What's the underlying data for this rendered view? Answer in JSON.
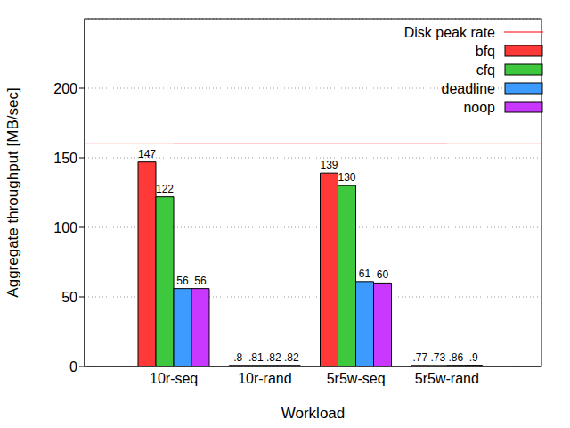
{
  "chart_data": {
    "type": "bar",
    "x_label": "Workload",
    "y_label": "Aggregate throughput [MB/sec]",
    "categories": [
      "10r-seq",
      "10r-rand",
      "5r5w-seq",
      "5r5w-rand"
    ],
    "series": [
      {
        "name": "Disk peak rate",
        "type": "line",
        "color": "#ff0000",
        "values": [
          160,
          160,
          160,
          160
        ]
      },
      {
        "name": "bfq",
        "color": "#ff3838",
        "values": [
          147,
          0.8,
          139,
          0.77
        ],
        "value_labels": [
          "147",
          ".8",
          "139",
          ".77"
        ]
      },
      {
        "name": "cfq",
        "color": "#3ec83e",
        "values": [
          122,
          0.81,
          130,
          0.73
        ],
        "value_labels": [
          "122",
          ".81",
          "130",
          ".73"
        ]
      },
      {
        "name": "deadline",
        "color": "#3d9bff",
        "values": [
          56,
          0.82,
          61,
          0.86
        ],
        "value_labels": [
          "56",
          ".82",
          "61",
          ".86"
        ]
      },
      {
        "name": "noop",
        "color": "#c838ff",
        "values": [
          56,
          0.82,
          60,
          0.9
        ],
        "value_labels": [
          "56",
          ".82",
          "60",
          ".9"
        ]
      }
    ],
    "ylim": [
      0,
      250
    ],
    "yticks": [
      0,
      50,
      100,
      150,
      200
    ],
    "grid": true,
    "legend": "upper right",
    "data_labels": true
  }
}
